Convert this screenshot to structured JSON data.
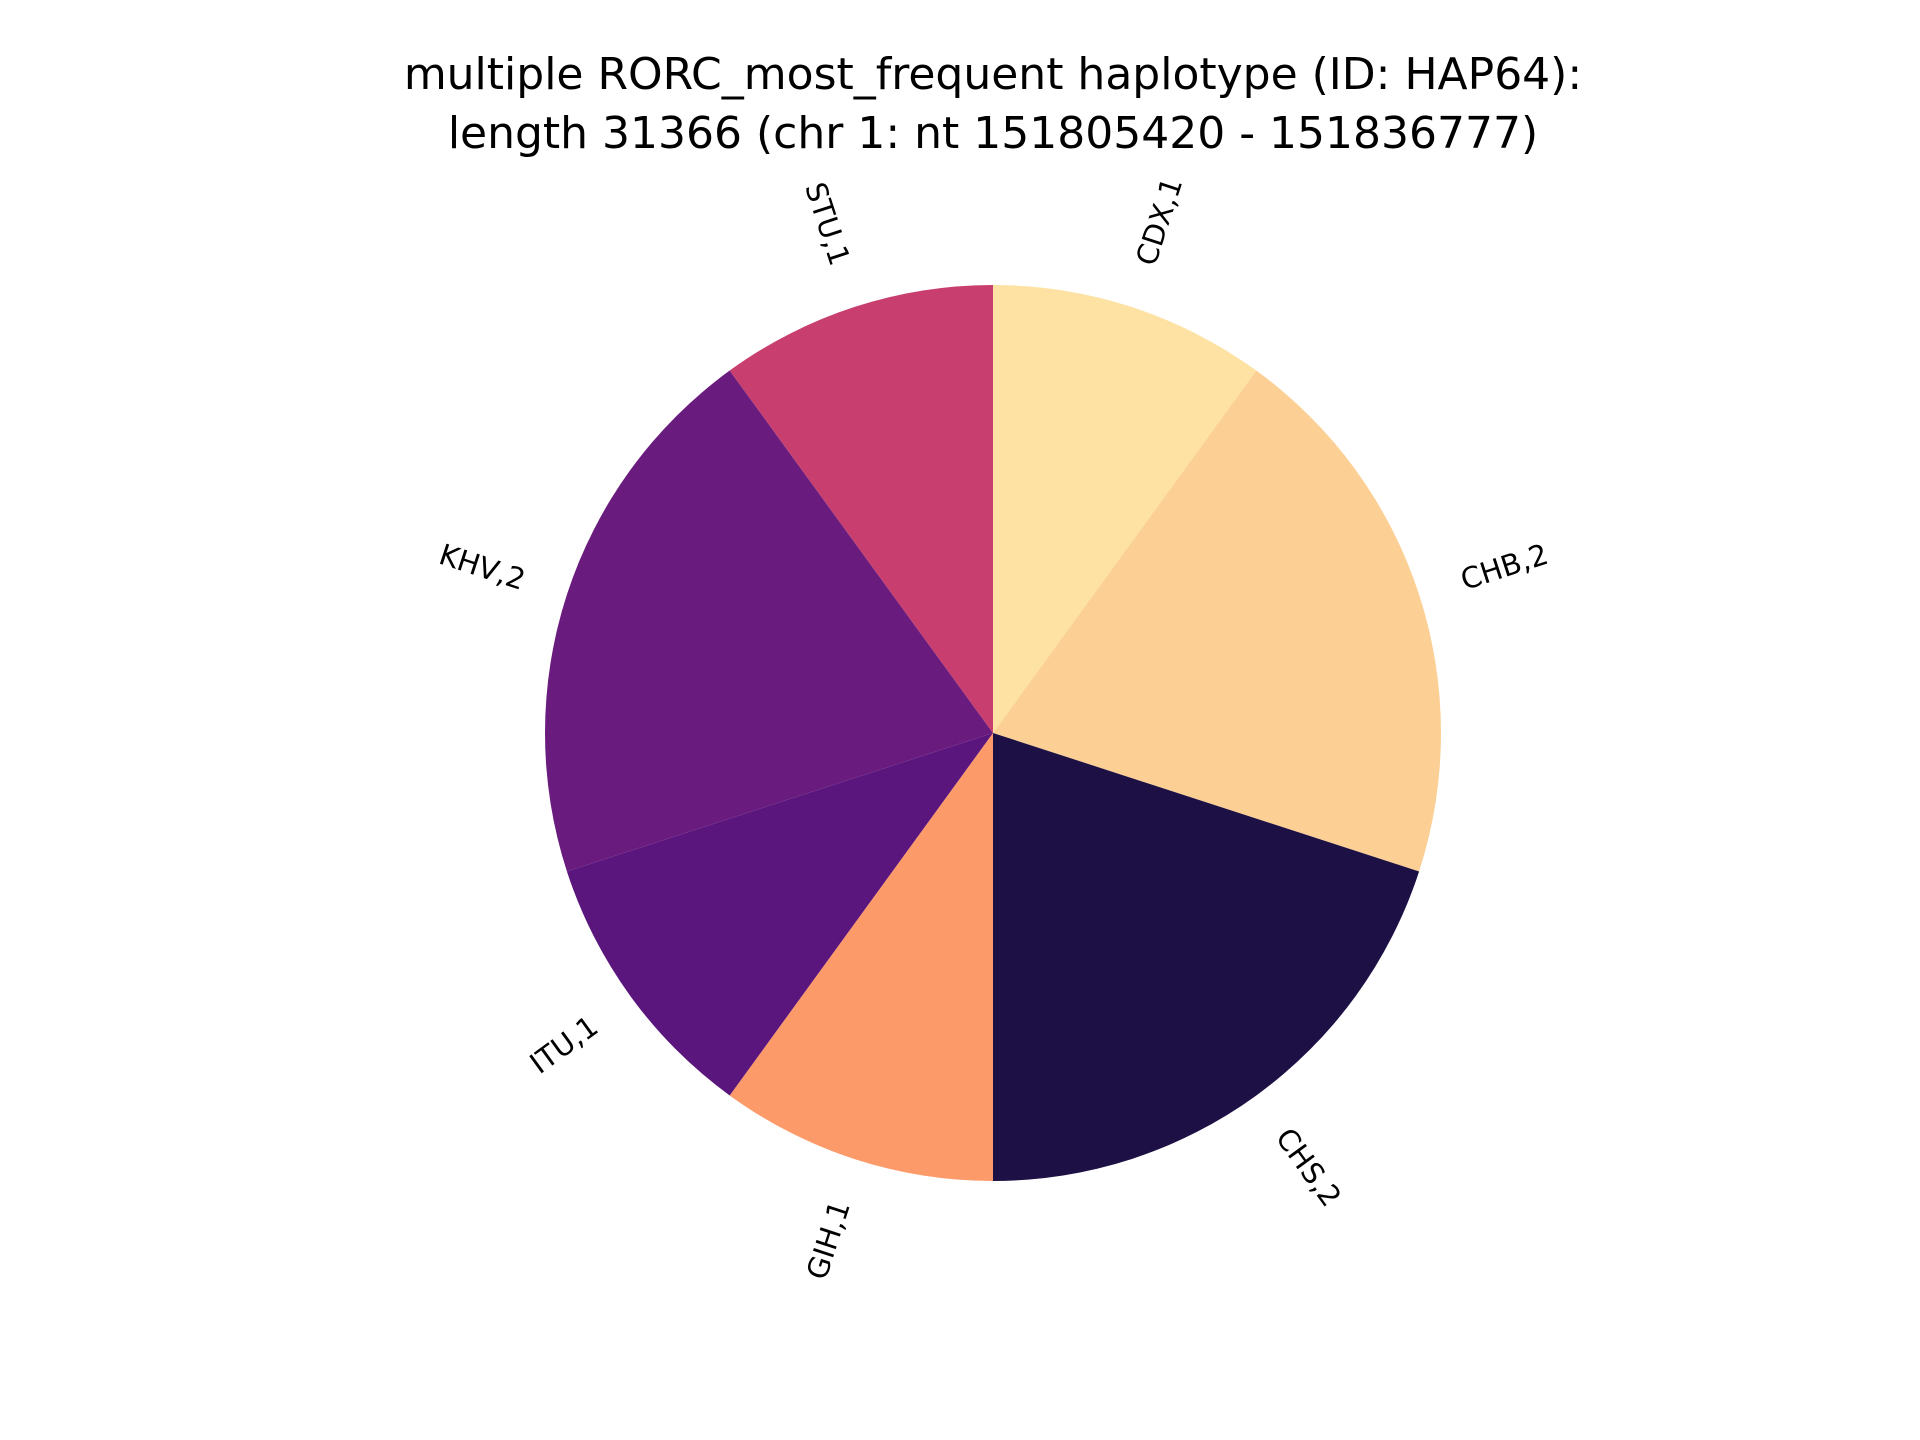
{
  "chart_data": {
    "type": "pie",
    "title_line1": "multiple RORC_most_frequent haplotype (ID: HAP64):",
    "title_line2": "length 31366 (chr 1: nt 151805420 - 151836777)",
    "start_angle_deg": 90,
    "direction": "clockwise",
    "slices": [
      {
        "label": "CDX,1",
        "value": 1,
        "color": "#fde2a3"
      },
      {
        "label": "CHB,2",
        "value": 2,
        "color": "#fcd095"
      },
      {
        "label": "CHS,2",
        "value": 2,
        "color": "#1c1044"
      },
      {
        "label": "GIH,1",
        "value": 1,
        "color": "#fd9a6a"
      },
      {
        "label": "ITU,1",
        "value": 1,
        "color": "#5b167e"
      },
      {
        "label": "KHV,2",
        "value": 2,
        "color": "#6a1c7e"
      },
      {
        "label": "STU,1",
        "value": 1,
        "color": "#c83e6e"
      }
    ]
  }
}
